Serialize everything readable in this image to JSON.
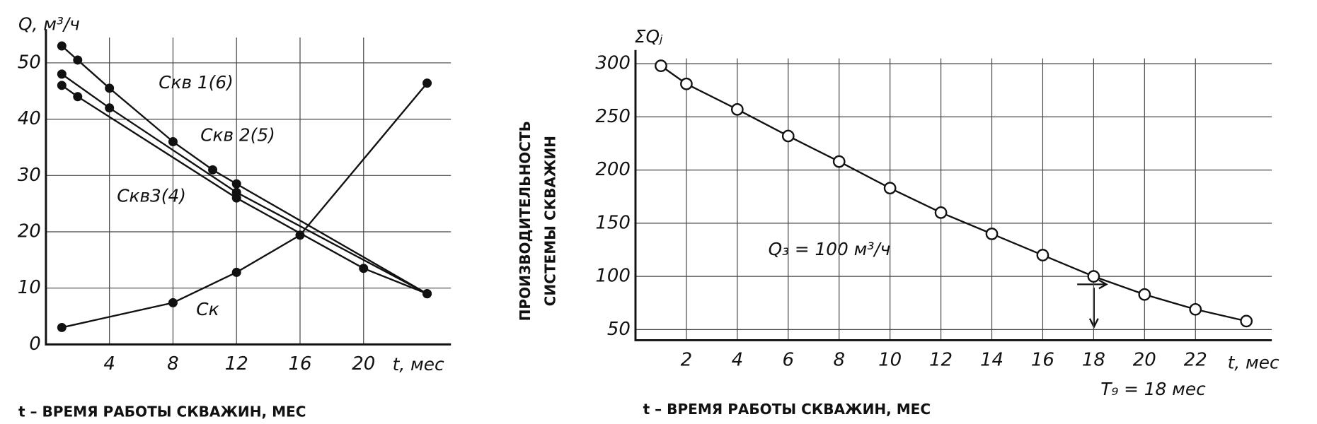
{
  "chart_data": [
    {
      "type": "line",
      "ylabel": "Q, м³/ч",
      "xlabel": "t, мес",
      "caption": "t – ВРЕМЯ РАБОТЫ СКВАЖИН,   МЕС",
      "xlim": [
        0,
        25.5
      ],
      "ylim": [
        0,
        54.5
      ],
      "xticks": [
        4,
        8,
        12,
        16,
        20
      ],
      "yticks": [
        0,
        10,
        20,
        30,
        40,
        50
      ],
      "grid": true,
      "marker_fill": "#111",
      "series": [
        {
          "name": "Скв 1(6)",
          "color": "#111",
          "x": [
            1,
            2,
            4,
            8,
            10.5,
            12,
            24
          ],
          "values": [
            53,
            50.5,
            45.5,
            36,
            31,
            28.5,
            9
          ]
        },
        {
          "name": "Скв 2(5)",
          "color": "#111",
          "x": [
            1,
            4,
            12,
            24
          ],
          "values": [
            48,
            42,
            27,
            9
          ]
        },
        {
          "name": "Скв3(4)",
          "color": "#111",
          "x": [
            1,
            2,
            12,
            20,
            24
          ],
          "values": [
            46,
            44,
            26,
            13.5,
            9
          ]
        },
        {
          "name": "Ск",
          "color": "#111",
          "x": [
            1,
            8,
            12,
            16,
            24
          ],
          "values": [
            3,
            7.4,
            12.8,
            19.4,
            46.4
          ]
        }
      ]
    },
    {
      "type": "line",
      "ylabel": "ΣQⱼ",
      "xlabel": "t, мес",
      "caption": "t – ВРЕМЯ РАБОТЫ СКВАЖИН, МЕС",
      "side_label": [
        "ПРОИЗВОДИТЕЛЬНОСТЬ",
        "СИСТЕМЫ СКВАЖИН"
      ],
      "annotations": [
        "Q₃ = 100 м³/ч",
        "T₉ = 18 мес"
      ],
      "xlim": [
        0,
        25
      ],
      "ylim": [
        40,
        305
      ],
      "xticks": [
        2,
        4,
        6,
        8,
        10,
        12,
        14,
        16,
        18,
        20,
        22
      ],
      "yticks": [
        50,
        100,
        150,
        200,
        250,
        300
      ],
      "grid": true,
      "marker_fill": "#fff",
      "series": [
        {
          "name": "ΣQⱼ",
          "color": "#111",
          "x": [
            1,
            2,
            4,
            6,
            8,
            10,
            12,
            14,
            16,
            18,
            20,
            22,
            24
          ],
          "values": [
            298,
            281,
            257,
            232,
            208,
            183,
            160,
            140,
            120,
            100,
            83,
            69,
            58
          ]
        }
      ]
    }
  ]
}
